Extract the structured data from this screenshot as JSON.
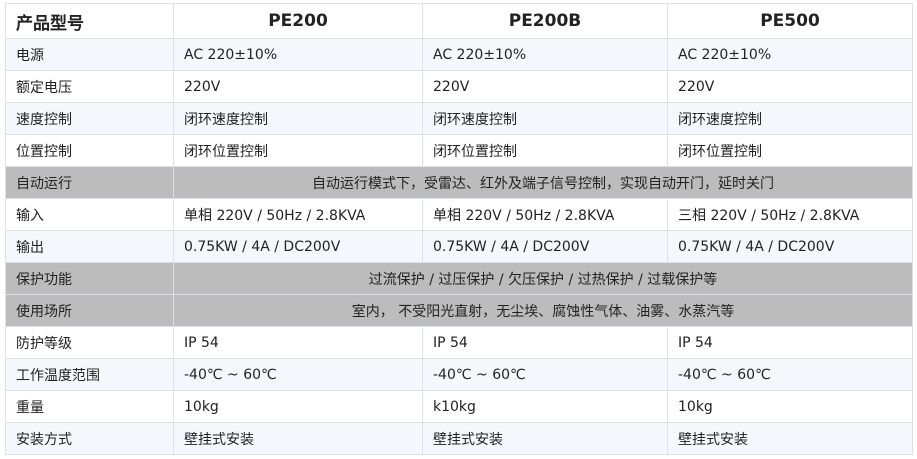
{
  "header": [
    "产品型号",
    "PE200",
    "PE200B",
    "PE500"
  ],
  "rows": [
    {
      "label": "电源",
      "cells": [
        "AC 220±10%",
        "AC 220±10%",
        "AC 220±10%"
      ],
      "style": "blue"
    },
    {
      "label": "额定电压",
      "cells": [
        "220V",
        "220V",
        "220V"
      ],
      "style": "white"
    },
    {
      "label": "速度控制",
      "cells": [
        "闭环速度控制",
        "闭环速度控制",
        "闭环速度控制"
      ],
      "style": "blue"
    },
    {
      "label": "位置控制",
      "cells": [
        "闭环位置控制",
        "闭环位置控制",
        "闭环位置控制"
      ],
      "style": "white"
    },
    {
      "label": "自动运行",
      "span": "自动运行模式下，受雷达、红外及端子信号控制，实现自动开门，延时关门",
      "style": "gray"
    },
    {
      "label": "输入",
      "cells": [
        "单相 220V / 50Hz / 2.8KVA",
        "单相 220V / 50Hz / 2.8KVA",
        "三相 220V / 50Hz / 2.8KVA"
      ],
      "style": "white"
    },
    {
      "label": "输出",
      "cells": [
        "0.75KW / 4A / DC200V",
        "0.75KW / 4A / DC200V",
        "0.75KW / 4A / DC200V"
      ],
      "style": "blue"
    },
    {
      "label": "保护功能",
      "span": "过流保护 / 过压保护 / 欠压保护 / 过热保护 / 过载保护等",
      "style": "gray"
    },
    {
      "label": "使用场所",
      "span": "室内， 不受阳光直射，无尘埃、腐蚀性气体、油雾、水蒸汽等",
      "style": "gray"
    },
    {
      "label": "防护等级",
      "cells": [
        "IP 54",
        "IP 54",
        "IP 54"
      ],
      "style": "white"
    },
    {
      "label": "工作温度范围",
      "cells": [
        "-40℃ ~ 60℃",
        "-40℃ ~ 60℃",
        "-40℃ ~ 60℃"
      ],
      "style": "blue"
    },
    {
      "label": "重量",
      "cells": [
        "10kg",
        "k10kg",
        "10kg"
      ],
      "style": "white"
    },
    {
      "label": "安装方式",
      "cells": [
        "壁挂式安装",
        "壁挂式安装",
        "壁挂式安装"
      ],
      "style": "blue"
    }
  ]
}
